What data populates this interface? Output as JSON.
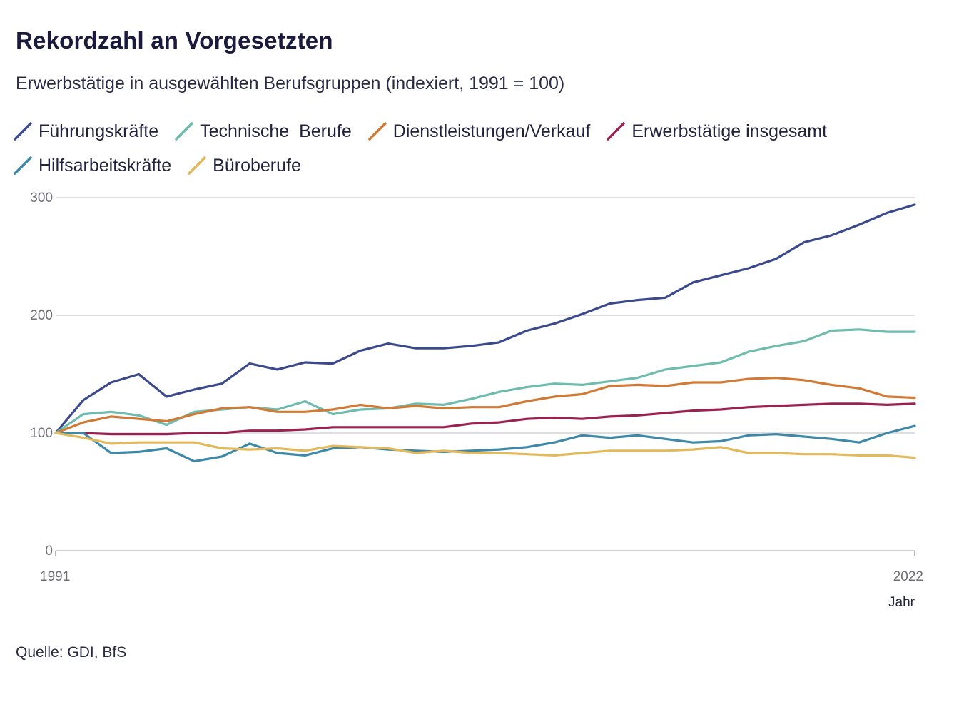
{
  "header": {
    "title": "Rekordzahl an Vorgesetzten",
    "subtitle": "Erwerbstätige in ausgewählten Berufsgruppen (indexiert, 1991 = 100)"
  },
  "footer": {
    "source": "Quelle: GDI, BfS"
  },
  "chart_data": {
    "type": "line",
    "title": "Rekordzahl an Vorgesetzten",
    "subtitle": "Erwerbstätige in ausgewählten Berufsgruppen (indexiert, 1991 = 100)",
    "xlabel": "Jahr",
    "ylabel": "",
    "xlim": [
      1991,
      2022
    ],
    "ylim": [
      0,
      300
    ],
    "x_tick_labels": [
      "1991",
      "2022"
    ],
    "y_ticks": [
      0,
      100,
      200,
      300
    ],
    "grid": true,
    "legend_position": "top",
    "x": [
      1991,
      1992,
      1993,
      1994,
      1995,
      1996,
      1997,
      1998,
      1999,
      2000,
      2001,
      2002,
      2003,
      2004,
      2005,
      2006,
      2007,
      2008,
      2009,
      2010,
      2011,
      2012,
      2013,
      2014,
      2015,
      2016,
      2017,
      2018,
      2019,
      2020,
      2021,
      2022
    ],
    "series": [
      {
        "name": "Führungskräfte",
        "color": "#3b4a8c",
        "values": [
          100,
          128,
          143,
          150,
          131,
          137,
          142,
          159,
          154,
          160,
          159,
          170,
          176,
          172,
          172,
          174,
          177,
          187,
          193,
          201,
          210,
          213,
          215,
          228,
          234,
          240,
          248,
          262,
          268,
          277,
          287,
          294
        ]
      },
      {
        "name": "Technische  Berufe",
        "color": "#6dbcad",
        "values": [
          100,
          116,
          118,
          115,
          107,
          118,
          120,
          122,
          120,
          127,
          116,
          120,
          121,
          125,
          124,
          129,
          135,
          139,
          142,
          141,
          144,
          147,
          154,
          157,
          160,
          169,
          174,
          178,
          187,
          188,
          186,
          186
        ]
      },
      {
        "name": "Dienstleistungen/Verkauf",
        "color": "#d27a35",
        "values": [
          100,
          109,
          114,
          112,
          110,
          116,
          121,
          122,
          118,
          118,
          120,
          124,
          121,
          123,
          121,
          122,
          122,
          127,
          131,
          133,
          140,
          141,
          140,
          143,
          143,
          146,
          147,
          145,
          141,
          138,
          131,
          130
        ]
      },
      {
        "name": "Erwerbstätige insgesamt",
        "color": "#9b2150",
        "values": [
          100,
          100,
          99,
          99,
          99,
          100,
          100,
          102,
          102,
          103,
          105,
          105,
          105,
          105,
          105,
          108,
          109,
          112,
          113,
          112,
          114,
          115,
          117,
          119,
          120,
          122,
          123,
          124,
          125,
          125,
          124,
          125
        ]
      },
      {
        "name": "Hilfsarbeitskräfte",
        "color": "#3e88a8",
        "values": [
          100,
          100,
          83,
          84,
          87,
          76,
          80,
          91,
          83,
          81,
          87,
          88,
          86,
          85,
          84,
          85,
          86,
          88,
          92,
          98,
          96,
          98,
          95,
          92,
          93,
          98,
          99,
          97,
          95,
          92,
          100,
          106
        ]
      },
      {
        "name": "Büroberufe",
        "color": "#e3b95c",
        "values": [
          100,
          96,
          91,
          92,
          92,
          92,
          87,
          86,
          87,
          85,
          89,
          88,
          87,
          83,
          85,
          83,
          83,
          82,
          81,
          83,
          85,
          85,
          85,
          86,
          88,
          83,
          83,
          82,
          82,
          81,
          81,
          79
        ]
      }
    ]
  }
}
